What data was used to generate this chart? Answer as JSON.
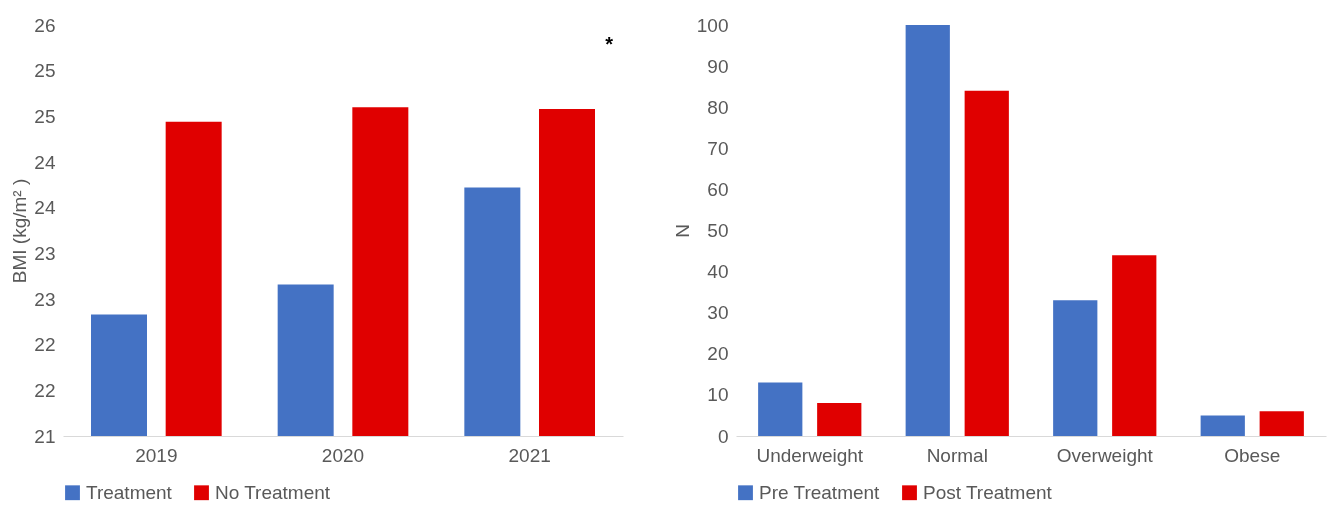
{
  "chart_data": [
    {
      "type": "bar",
      "ylabel": "BMI (kg/m² )",
      "categories": [
        "2019",
        "2020",
        "2021"
      ],
      "series": [
        {
          "name": "Treatment",
          "color": "#4472c4",
          "values": [
            22.33,
            22.66,
            23.72
          ]
        },
        {
          "name": "No Treatment",
          "color": "#e00000",
          "values": [
            24.44,
            24.6,
            24.58
          ]
        }
      ],
      "ylim": [
        21,
        25.5
      ],
      "yticks": [
        {
          "value": 21,
          "label": "21"
        },
        {
          "value": 21.5,
          "label": "22"
        },
        {
          "value": 22,
          "label": "22"
        },
        {
          "value": 22.5,
          "label": "23"
        },
        {
          "value": 23,
          "label": "23"
        },
        {
          "value": 23.5,
          "label": "24"
        },
        {
          "value": 24,
          "label": "24"
        },
        {
          "value": 24.5,
          "label": "25"
        },
        {
          "value": 25,
          "label": "25"
        },
        {
          "value": 25.5,
          "label": "26"
        }
      ],
      "annotations": [
        "*"
      ],
      "grid": false,
      "legend": "bottom"
    },
    {
      "type": "bar",
      "ylabel": "N",
      "categories": [
        "Underweight",
        "Normal",
        "Overweight",
        "Obese"
      ],
      "series": [
        {
          "name": "Pre Treatment",
          "color": "#4472c4",
          "values": [
            13,
            100,
            33,
            5
          ]
        },
        {
          "name": "Post Treatment",
          "color": "#e00000",
          "values": [
            8,
            84,
            44,
            6
          ]
        }
      ],
      "ylim": [
        0,
        100
      ],
      "yticks": [
        0,
        10,
        20,
        30,
        40,
        50,
        60,
        70,
        80,
        90,
        100
      ],
      "grid": false,
      "legend": "bottom"
    }
  ]
}
